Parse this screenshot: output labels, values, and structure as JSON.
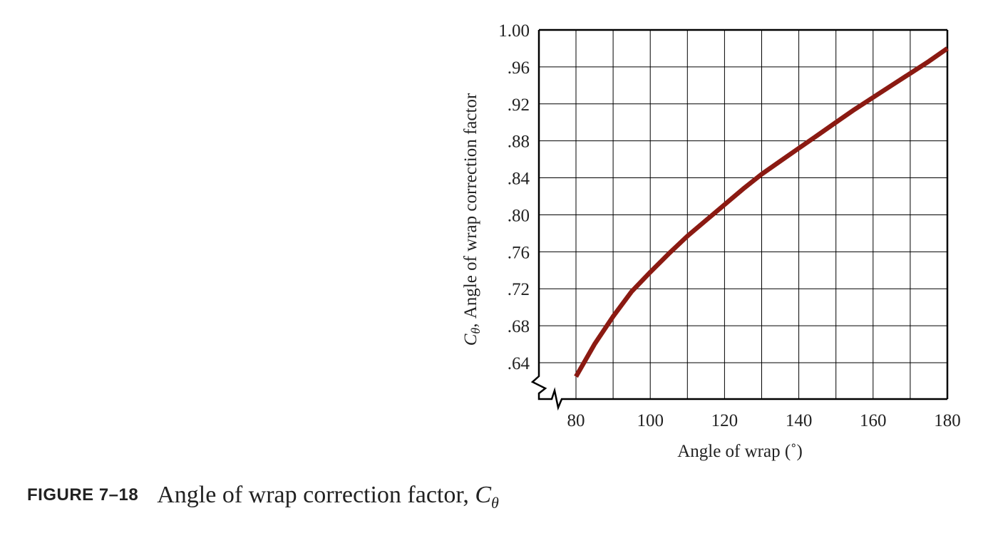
{
  "chart_data": {
    "type": "line",
    "xlabel": "Angle of wrap (˚)",
    "ylabel_prefix": "C",
    "ylabel_sub": "θ",
    "ylabel_rest": ", Angle of wrap correction factor",
    "xlim": [
      70,
      180
    ],
    "ylim": [
      0.62,
      1.0
    ],
    "x_ticks": [
      80,
      100,
      120,
      140,
      160,
      180
    ],
    "x_tick_labels": [
      "80",
      "100",
      "120",
      "140",
      "160",
      "180"
    ],
    "y_ticks": [
      0.64,
      0.68,
      0.72,
      0.76,
      0.8,
      0.84,
      0.88,
      0.92,
      0.96,
      1.0
    ],
    "y_tick_labels": [
      ".64",
      ".68",
      ".72",
      ".76",
      ".80",
      ".84",
      ".88",
      ".92",
      ".96",
      "1.00"
    ],
    "grid": true,
    "axis_break": true,
    "line_color": "#8b1a12",
    "series": [
      {
        "x": [
          80,
          85,
          90,
          95,
          100,
          105,
          110,
          115,
          120,
          125,
          130,
          135,
          140,
          145,
          150,
          155,
          160,
          165,
          170,
          175,
          180
        ],
        "values": [
          0.625,
          0.66,
          0.69,
          0.717,
          0.738,
          0.758,
          0.777,
          0.794,
          0.811,
          0.828,
          0.844,
          0.858,
          0.872,
          0.886,
          0.9,
          0.914,
          0.927,
          0.94,
          0.953,
          0.966,
          0.98
        ]
      }
    ]
  },
  "caption": {
    "figure_label": "FIGURE 7–18",
    "text": "Angle of wrap correction factor, ",
    "symbol": "C",
    "symbol_sub": "θ"
  }
}
